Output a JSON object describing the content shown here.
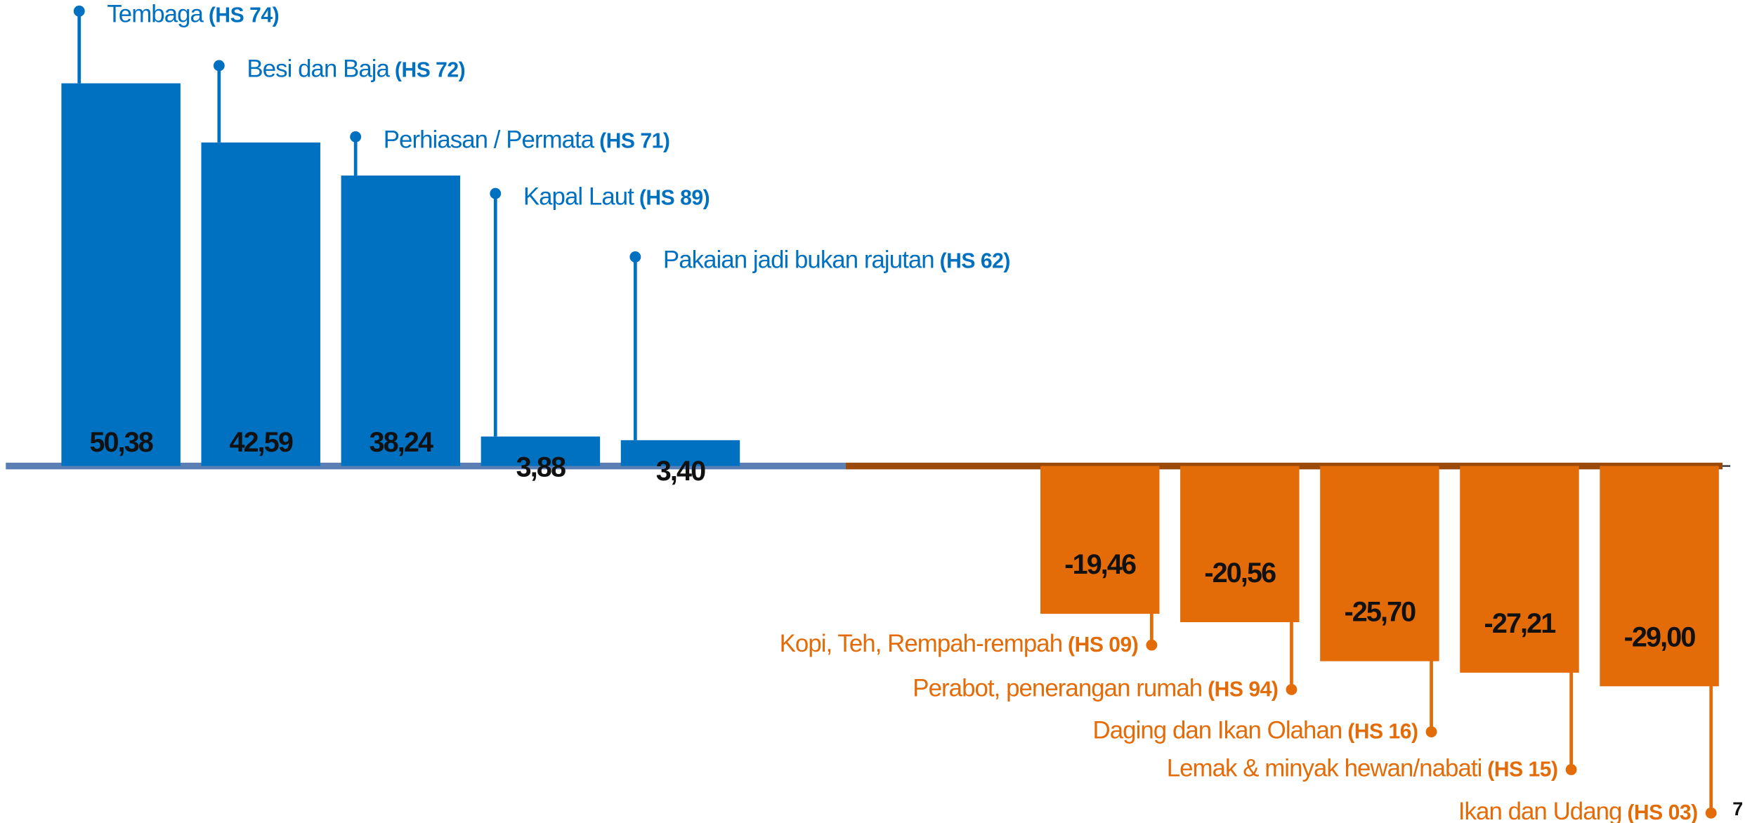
{
  "chart_data": {
    "type": "bar",
    "categories": [
      "Tembaga",
      "Besi dan Baja",
      "Perhiasan / Permata",
      "Kapal Laut",
      "Pakaian jadi bukan rajutan",
      "Kopi, Teh, Rempah-rempah",
      "Perabot, penerangan rumah",
      "Daging dan Ikan Olahan",
      "Lemak & minyak hewan/nabati",
      "Ikan dan Udang"
    ],
    "codes": [
      "(HS 74)",
      "(HS 72)",
      "(HS 71)",
      "(HS 89)",
      "(HS 62)",
      "(HS 09)",
      "(HS 94)",
      "(HS 16)",
      "(HS 15)",
      "(HS 03)"
    ],
    "values": [
      50.38,
      42.59,
      38.24,
      3.88,
      3.4,
      -19.46,
      -20.56,
      -25.7,
      -27.21,
      -29.0
    ],
    "value_labels": [
      "50,38",
      "42,59",
      "38,24",
      "3,88",
      "3,40",
      "-19,46",
      "-20,56",
      "-25,70",
      "-27,21",
      "-29,00"
    ],
    "positive_color": "#0070c0",
    "negative_color": "#e36c09",
    "page_number": "7"
  }
}
